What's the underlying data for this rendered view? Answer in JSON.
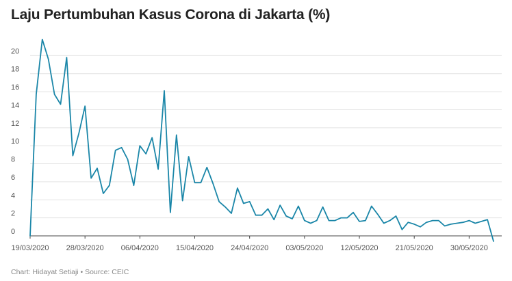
{
  "chart_data": {
    "type": "line",
    "title": "Laju Pertumbuhan Kasus Corona di Jakarta (%)",
    "xlabel": "",
    "ylabel": "",
    "ylim": [
      0,
      22
    ],
    "yticks": [
      0,
      2,
      4,
      6,
      8,
      10,
      12,
      14,
      16,
      18,
      20
    ],
    "grid": true,
    "legend": "none",
    "x_start": "19/03/2020",
    "x_tick_labels": [
      "19/03/2020",
      "28/03/2020",
      "06/04/2020",
      "15/04/2020",
      "24/04/2020",
      "03/05/2020",
      "12/05/2020",
      "21/05/2020",
      "30/05/2020"
    ],
    "line_color": "#1a86a8",
    "series": [
      {
        "values": [
          0,
          15.7,
          21.8,
          19.6,
          15.7,
          14.6,
          19.8,
          8.9,
          11.4,
          14.4,
          6.4,
          7.5,
          4.7,
          5.6,
          9.5,
          9.8,
          8.5,
          5.6,
          10.0,
          9.1,
          10.9,
          7.4,
          16.1,
          2.6,
          11.2,
          3.9,
          8.8,
          5.9,
          5.9,
          7.6,
          5.8,
          3.8,
          3.2,
          2.5,
          5.3,
          3.6,
          3.8,
          2.3,
          2.3,
          3.0,
          1.8,
          3.4,
          2.2,
          1.9,
          3.3,
          1.7,
          1.4,
          1.7,
          3.2,
          1.7,
          1.7,
          2.0,
          2.0,
          2.6,
          1.6,
          1.7,
          3.3,
          2.4,
          1.4,
          1.7,
          2.2,
          0.7,
          1.5,
          1.3,
          1.0,
          1.5,
          1.7,
          1.7,
          1.1,
          1.3,
          1.4,
          1.5,
          1.7,
          1.4,
          1.6,
          1.8,
          -0.6
        ]
      }
    ]
  },
  "footer": {
    "credit": "Chart: Hidayat Setiaji • Source: CEIC"
  }
}
